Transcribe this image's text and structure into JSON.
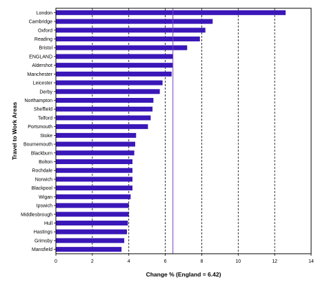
{
  "chart_data": {
    "type": "bar",
    "orientation": "horizontal",
    "title": "",
    "xlabel": "Change % (England = 6.42)",
    "ylabel": "Travel to Work Areas",
    "xlim": [
      0,
      14
    ],
    "xticks": [
      0,
      2,
      4,
      6,
      8,
      10,
      12,
      14
    ],
    "grid": "dashed vertical lines at 2, 4, 6, 8, 10, 12",
    "reference_line": {
      "value": 6.42,
      "color": "#7b3fbf"
    },
    "bar_color": "#3a17b8",
    "categories": [
      "London",
      "Cambridge",
      "Oxford",
      "Reading",
      "Bristol",
      "ENGLAND",
      "Aldershot",
      "Manchester",
      "Leicester",
      "Derby",
      "Northampton",
      "Sheffield",
      "Telford",
      "Portsmouth",
      "Stoke",
      "Bournemouth",
      "Blackburn",
      "Bolton",
      "Rochdale",
      "Norwich",
      "Blackpool",
      "Wigan",
      "Ipswich",
      "Middlesbrough",
      "Hull",
      "Hastings",
      "Grimsby",
      "Mansfield"
    ],
    "values": [
      12.6,
      8.6,
      8.2,
      7.9,
      7.2,
      6.42,
      6.4,
      6.35,
      5.85,
      5.7,
      5.35,
      5.3,
      5.2,
      5.05,
      4.4,
      4.35,
      4.3,
      4.2,
      4.2,
      4.2,
      4.2,
      4.1,
      4.0,
      4.0,
      3.95,
      3.9,
      3.75,
      3.6
    ]
  }
}
